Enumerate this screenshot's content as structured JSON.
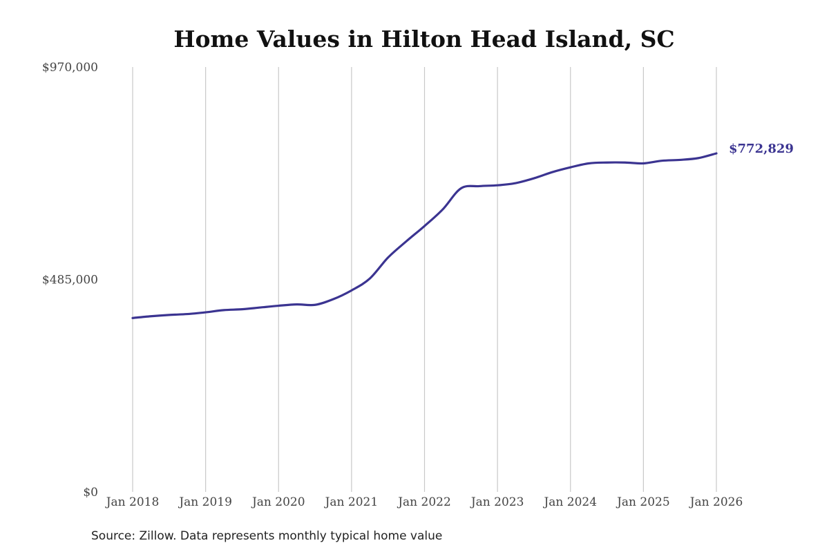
{
  "chart_data": {
    "type": "line",
    "title": "Home Values in Hilton Head Island, SC",
    "xlabel": "",
    "ylabel": "",
    "ylim": [
      0,
      970000
    ],
    "xlim": [
      "2018-01",
      "2026-01"
    ],
    "y_ticks": [
      {
        "value": 0,
        "label": "$0"
      },
      {
        "value": 485000,
        "label": "$485,000"
      },
      {
        "value": 970000,
        "label": "$970,000"
      }
    ],
    "x_ticks": [
      {
        "value": "2018-01",
        "label": "Jan 2018"
      },
      {
        "value": "2019-01",
        "label": "Jan 2019"
      },
      {
        "value": "2020-01",
        "label": "Jan 2020"
      },
      {
        "value": "2021-01",
        "label": "Jan 2021"
      },
      {
        "value": "2022-01",
        "label": "Jan 2022"
      },
      {
        "value": "2023-01",
        "label": "Jan 2023"
      },
      {
        "value": "2024-01",
        "label": "Jan 2024"
      },
      {
        "value": "2025-01",
        "label": "Jan 2025"
      },
      {
        "value": "2026-01",
        "label": "Jan 2026"
      }
    ],
    "grid": {
      "vertical": true,
      "horizontal": false
    },
    "legend": "none",
    "series": [
      {
        "color": "#3b3491",
        "end_label": "$772,829",
        "points": [
          {
            "x": "2018-01",
            "y": 397000
          },
          {
            "x": "2018-04",
            "y": 401000
          },
          {
            "x": "2018-07",
            "y": 404000
          },
          {
            "x": "2018-10",
            "y": 406000
          },
          {
            "x": "2019-01",
            "y": 410000
          },
          {
            "x": "2019-04",
            "y": 415000
          },
          {
            "x": "2019-07",
            "y": 417000
          },
          {
            "x": "2019-10",
            "y": 421000
          },
          {
            "x": "2020-01",
            "y": 425000
          },
          {
            "x": "2020-04",
            "y": 428000
          },
          {
            "x": "2020-07",
            "y": 427000
          },
          {
            "x": "2020-10",
            "y": 440000
          },
          {
            "x": "2021-01",
            "y": 460000
          },
          {
            "x": "2021-04",
            "y": 487000
          },
          {
            "x": "2021-07",
            "y": 535000
          },
          {
            "x": "2021-10",
            "y": 572000
          },
          {
            "x": "2022-01",
            "y": 607000
          },
          {
            "x": "2022-04",
            "y": 645000
          },
          {
            "x": "2022-07",
            "y": 693000
          },
          {
            "x": "2022-10",
            "y": 698000
          },
          {
            "x": "2023-01",
            "y": 700000
          },
          {
            "x": "2023-04",
            "y": 705000
          },
          {
            "x": "2023-07",
            "y": 716000
          },
          {
            "x": "2023-10",
            "y": 730000
          },
          {
            "x": "2024-01",
            "y": 741000
          },
          {
            "x": "2024-04",
            "y": 750000
          },
          {
            "x": "2024-07",
            "y": 752000
          },
          {
            "x": "2024-10",
            "y": 752000
          },
          {
            "x": "2025-01",
            "y": 750000
          },
          {
            "x": "2025-04",
            "y": 756000
          },
          {
            "x": "2025-07",
            "y": 758000
          },
          {
            "x": "2025-10",
            "y": 762000
          },
          {
            "x": "2026-01",
            "y": 772829
          }
        ]
      }
    ]
  },
  "footer": {
    "source": "Source: Zillow. Data represents monthly typical home value"
  }
}
